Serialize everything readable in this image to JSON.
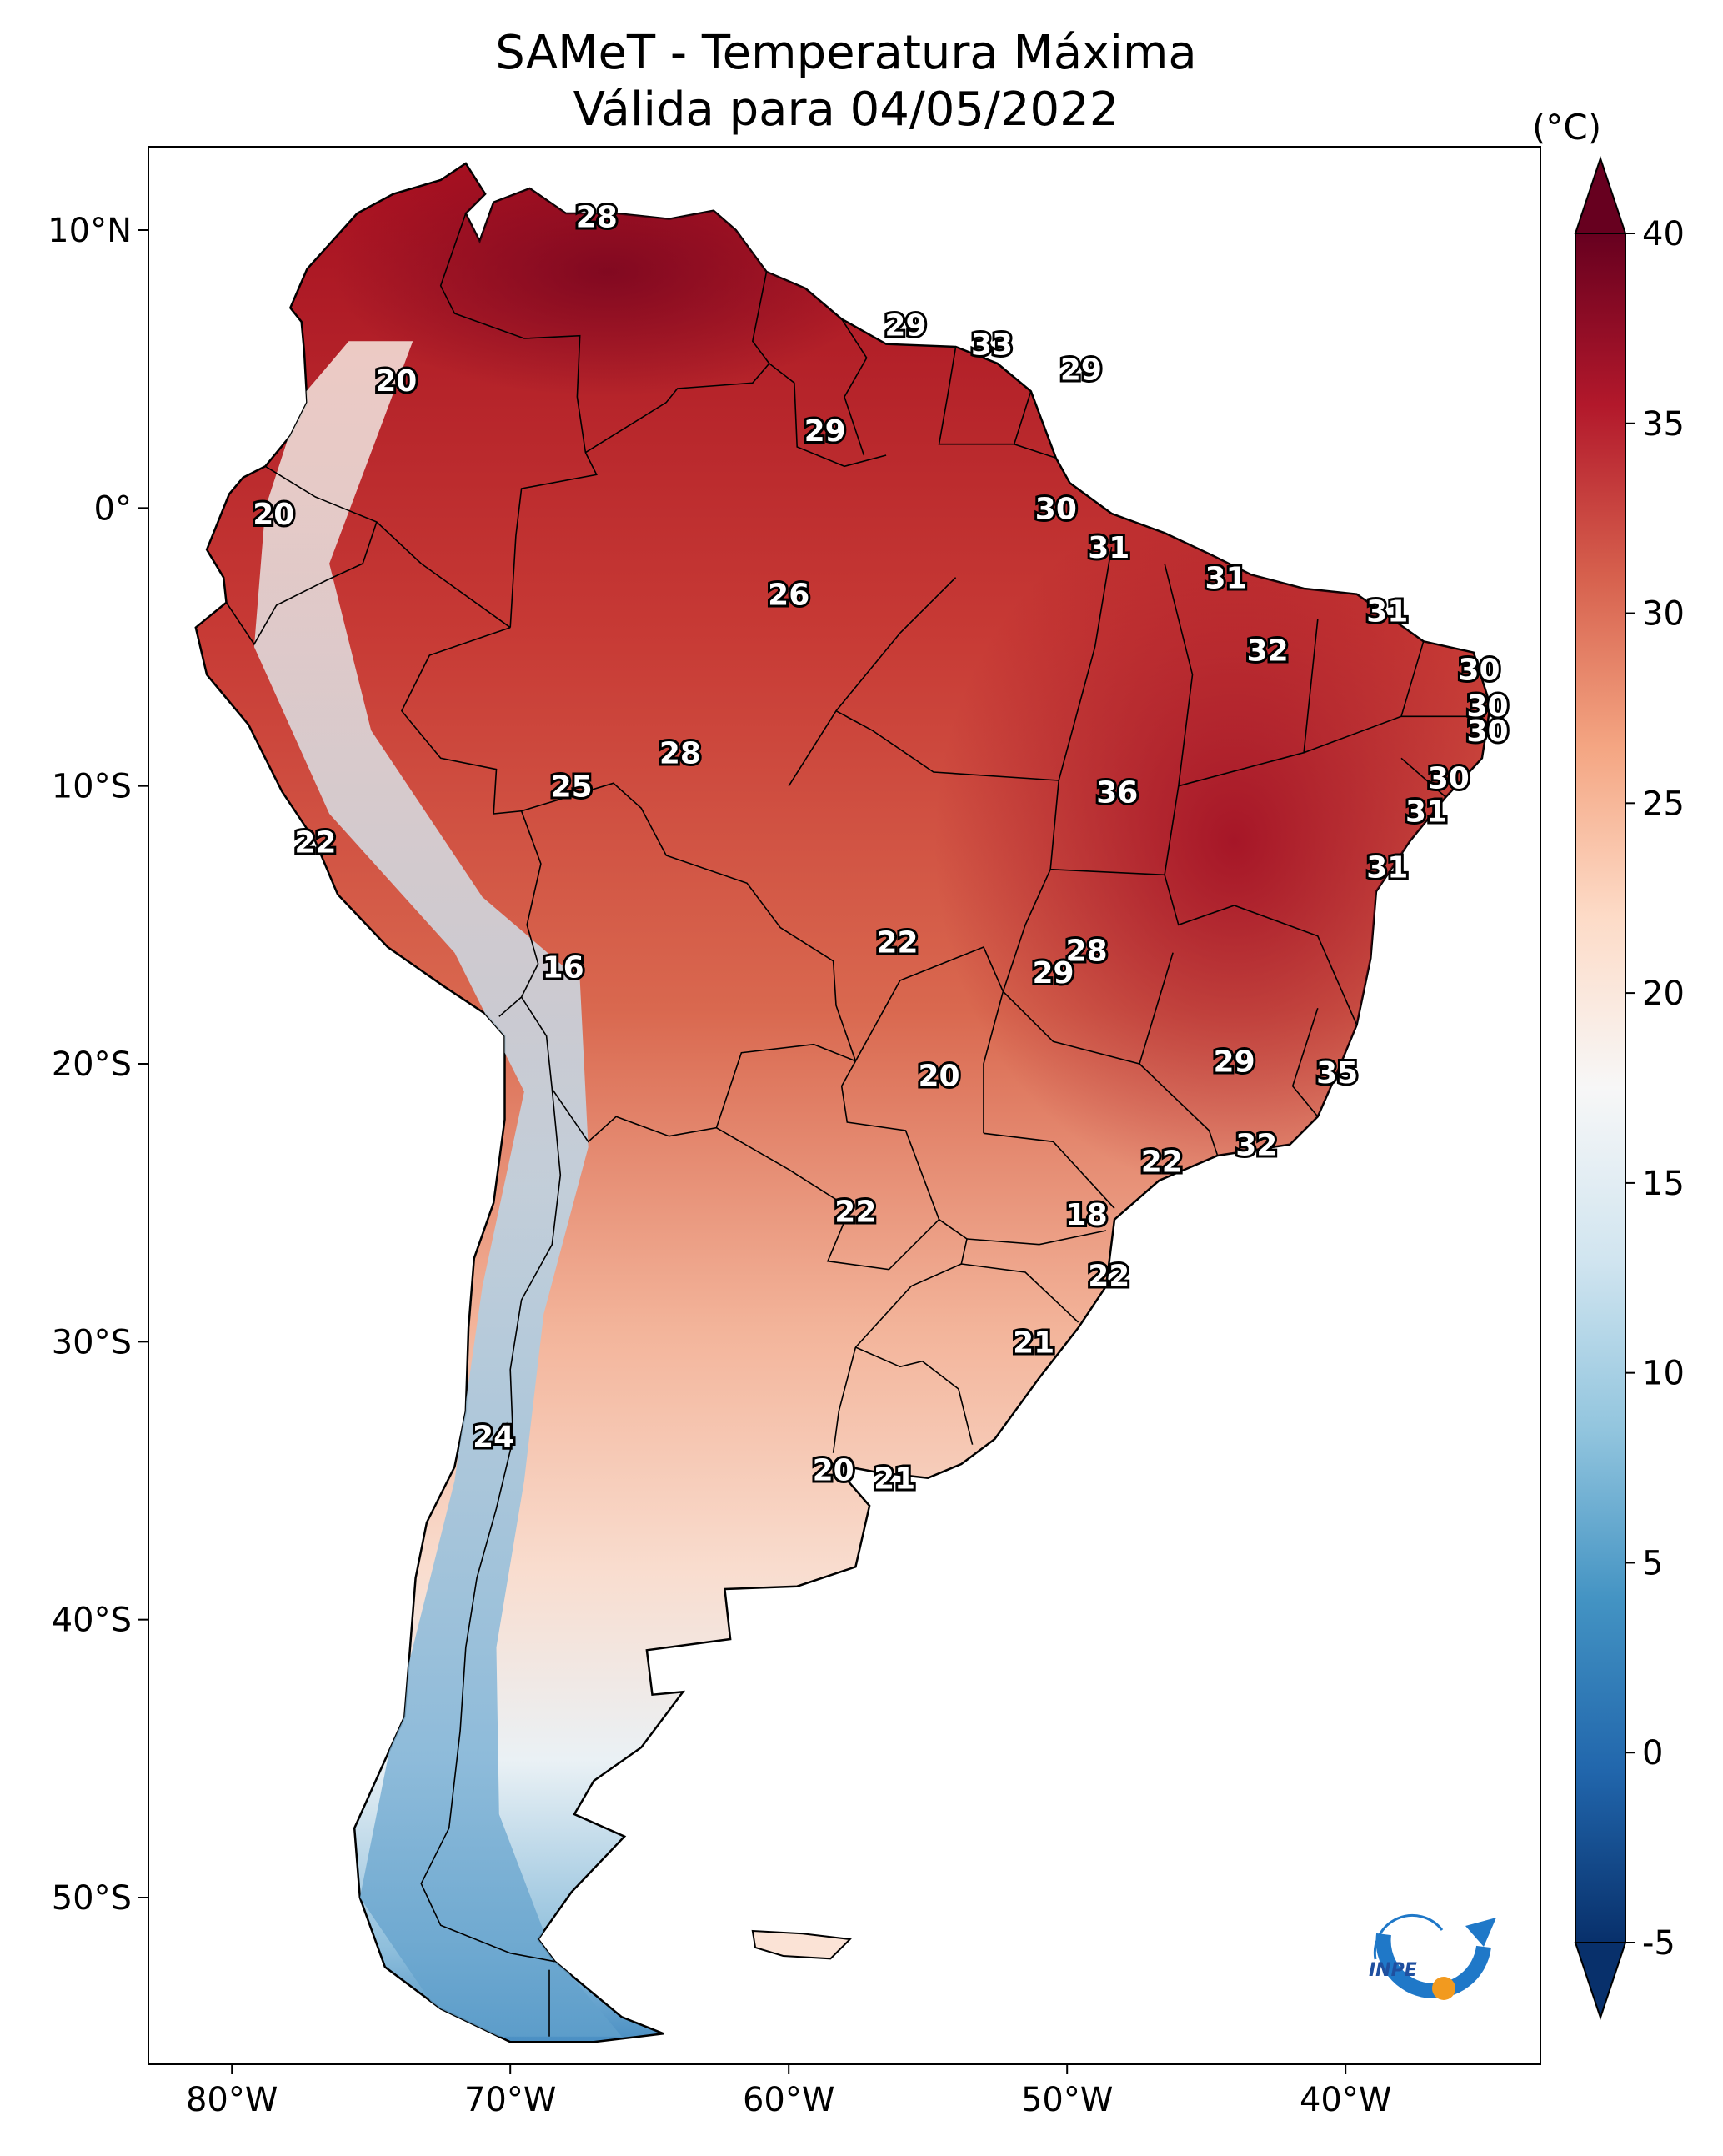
{
  "title": {
    "line1": "SAMeT - Temperatura Máxima",
    "line2": "Válida para 04/05/2022"
  },
  "map": {
    "lon_range": [
      -83,
      -33
    ],
    "lat_range": [
      -56,
      13
    ],
    "lat_ticks": [
      {
        "value": 10,
        "label": "10°N"
      },
      {
        "value": 0,
        "label": "0°"
      },
      {
        "value": -10,
        "label": "10°S"
      },
      {
        "value": -20,
        "label": "20°S"
      },
      {
        "value": -30,
        "label": "30°S"
      },
      {
        "value": -40,
        "label": "40°S"
      },
      {
        "value": -50,
        "label": "50°S"
      }
    ],
    "lon_ticks": [
      {
        "value": -80,
        "label": "80°W"
      },
      {
        "value": -70,
        "label": "70°W"
      },
      {
        "value": -60,
        "label": "60°W"
      },
      {
        "value": -50,
        "label": "50°W"
      },
      {
        "value": -40,
        "label": "40°W"
      }
    ],
    "city_values": [
      {
        "lon": -66.9,
        "lat": 10.5,
        "value": "28"
      },
      {
        "lon": -55.8,
        "lat": 6.6,
        "value": "29"
      },
      {
        "lon": -52.7,
        "lat": 5.9,
        "value": "33"
      },
      {
        "lon": -49.5,
        "lat": 5.0,
        "value": "29"
      },
      {
        "lon": -74.1,
        "lat": 4.6,
        "value": "20"
      },
      {
        "lon": -58.7,
        "lat": 2.8,
        "value": "29"
      },
      {
        "lon": -78.5,
        "lat": -0.2,
        "value": "20"
      },
      {
        "lon": -50.4,
        "lat": 0.0,
        "value": "30"
      },
      {
        "lon": -48.5,
        "lat": -1.4,
        "value": "31"
      },
      {
        "lon": -60.0,
        "lat": -3.1,
        "value": "26"
      },
      {
        "lon": -44.3,
        "lat": -2.5,
        "value": "31"
      },
      {
        "lon": -38.5,
        "lat": -3.7,
        "value": "31"
      },
      {
        "lon": -42.8,
        "lat": -5.1,
        "value": "32"
      },
      {
        "lon": -35.2,
        "lat": -5.8,
        "value": "30"
      },
      {
        "lon": -34.9,
        "lat": -7.1,
        "value": "30"
      },
      {
        "lon": -34.9,
        "lat": -8.0,
        "value": "30"
      },
      {
        "lon": -36.3,
        "lat": -9.7,
        "value": "30"
      },
      {
        "lon": -63.9,
        "lat": -8.8,
        "value": "28"
      },
      {
        "lon": -67.8,
        "lat": -10.0,
        "value": "25"
      },
      {
        "lon": -48.2,
        "lat": -10.2,
        "value": "36"
      },
      {
        "lon": -37.1,
        "lat": -10.9,
        "value": "31"
      },
      {
        "lon": -77.0,
        "lat": -12.0,
        "value": "22"
      },
      {
        "lon": -38.5,
        "lat": -12.9,
        "value": "31"
      },
      {
        "lon": -56.1,
        "lat": -15.6,
        "value": "22"
      },
      {
        "lon": -49.3,
        "lat": -15.9,
        "value": "28"
      },
      {
        "lon": -50.5,
        "lat": -16.7,
        "value": "29"
      },
      {
        "lon": -68.1,
        "lat": -16.5,
        "value": "16"
      },
      {
        "lon": -54.6,
        "lat": -20.4,
        "value": "20"
      },
      {
        "lon": -44.0,
        "lat": -19.9,
        "value": "29"
      },
      {
        "lon": -40.3,
        "lat": -20.3,
        "value": "35"
      },
      {
        "lon": -43.2,
        "lat": -22.9,
        "value": "32"
      },
      {
        "lon": -46.6,
        "lat": -23.5,
        "value": "22"
      },
      {
        "lon": -57.6,
        "lat": -25.3,
        "value": "22"
      },
      {
        "lon": -49.3,
        "lat": -25.4,
        "value": "18"
      },
      {
        "lon": -48.5,
        "lat": -27.6,
        "value": "22"
      },
      {
        "lon": -51.2,
        "lat": -30.0,
        "value": "21"
      },
      {
        "lon": -70.6,
        "lat": -33.4,
        "value": "24"
      },
      {
        "lon": -58.4,
        "lat": -34.6,
        "value": "20"
      },
      {
        "lon": -56.2,
        "lat": -34.9,
        "value": "21"
      }
    ]
  },
  "colorbar": {
    "unit": "(°C)",
    "min": -5,
    "max": 40,
    "ticks": [
      "40",
      "35",
      "30",
      "25",
      "20",
      "15",
      "10",
      "5",
      "0",
      "-5"
    ],
    "colors": [
      "#08306b",
      "#2166ac",
      "#4393c3",
      "#92c5de",
      "#d1e5f0",
      "#f7f7f7",
      "#fddbc7",
      "#f4a582",
      "#d6604d",
      "#b2182b",
      "#67001f"
    ]
  },
  "logo": {
    "text": "INPE"
  }
}
